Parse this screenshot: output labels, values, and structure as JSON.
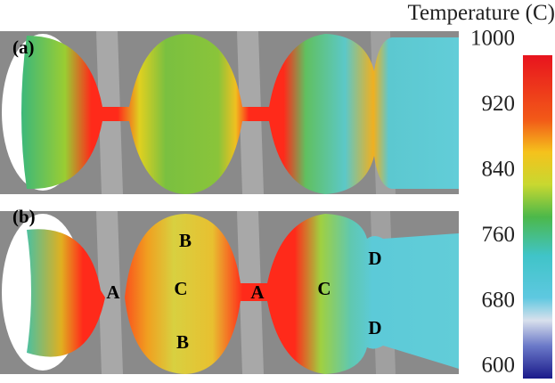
{
  "colorbar": {
    "title": "Temperature (C)",
    "range": [
      600,
      1000
    ],
    "ticks": [
      1000,
      920,
      840,
      760,
      680,
      600
    ]
  },
  "panels": [
    {
      "label": "(a)"
    },
    {
      "label": "(b)",
      "annotations": [
        "A",
        "B",
        "C",
        "B",
        "A",
        "C",
        "D",
        "D"
      ]
    }
  ]
}
